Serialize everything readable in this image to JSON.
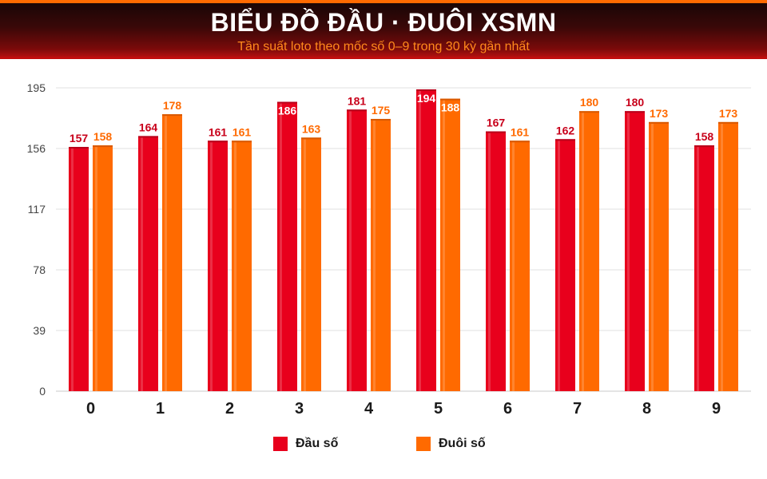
{
  "header": {
    "title": "BIỂU ĐỒ ĐẦU · ĐUÔI XSMN",
    "subtitle": "Tần suất loto theo mốc số 0–9 trong 30 kỳ gần nhất"
  },
  "colors": {
    "series_head": "#e8001c",
    "series_tail": "#ff6a00",
    "grid": "#e2e2e2"
  },
  "chart_data": {
    "type": "bar",
    "title": "BIỂU ĐỒ ĐẦU · ĐUÔI XSMN",
    "subtitle": "Tần suất loto theo mốc số 0–9 trong 30 kỳ gần nhất",
    "categories": [
      "0",
      "1",
      "2",
      "3",
      "4",
      "5",
      "6",
      "7",
      "8",
      "9"
    ],
    "series": [
      {
        "name": "Đầu số",
        "values": [
          157,
          164,
          161,
          186,
          181,
          194,
          167,
          162,
          180,
          158
        ]
      },
      {
        "name": "Đuôi số",
        "values": [
          158,
          178,
          161,
          163,
          175,
          188,
          161,
          180,
          173,
          173
        ]
      }
    ],
    "yticks": [
      0,
      39,
      78,
      117,
      156,
      195
    ],
    "ylim": [
      0,
      195
    ],
    "grid": true,
    "legend_position": "bottom-center"
  }
}
